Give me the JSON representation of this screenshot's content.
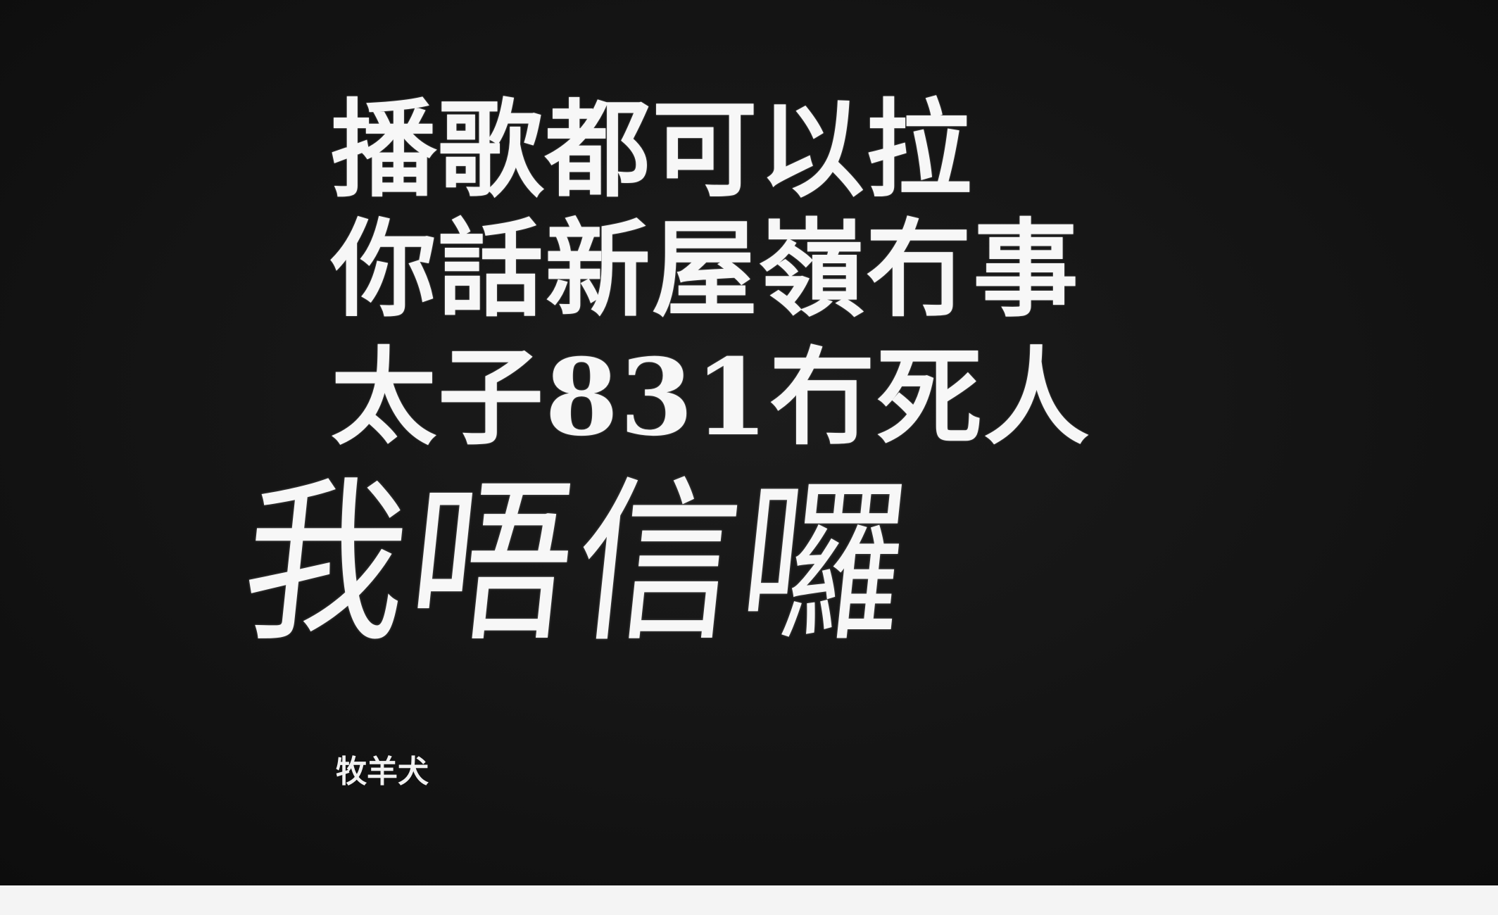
{
  "poem": {
    "lines": [
      "播歌都可以拉",
      "你話新屋嶺冇事",
      "太子831冇死人"
    ],
    "headline": "我唔信囉",
    "author": "牧羊犬"
  },
  "colors": {
    "background": "#141414",
    "text": "#f7f7f7",
    "border": "#f4f4f4"
  }
}
